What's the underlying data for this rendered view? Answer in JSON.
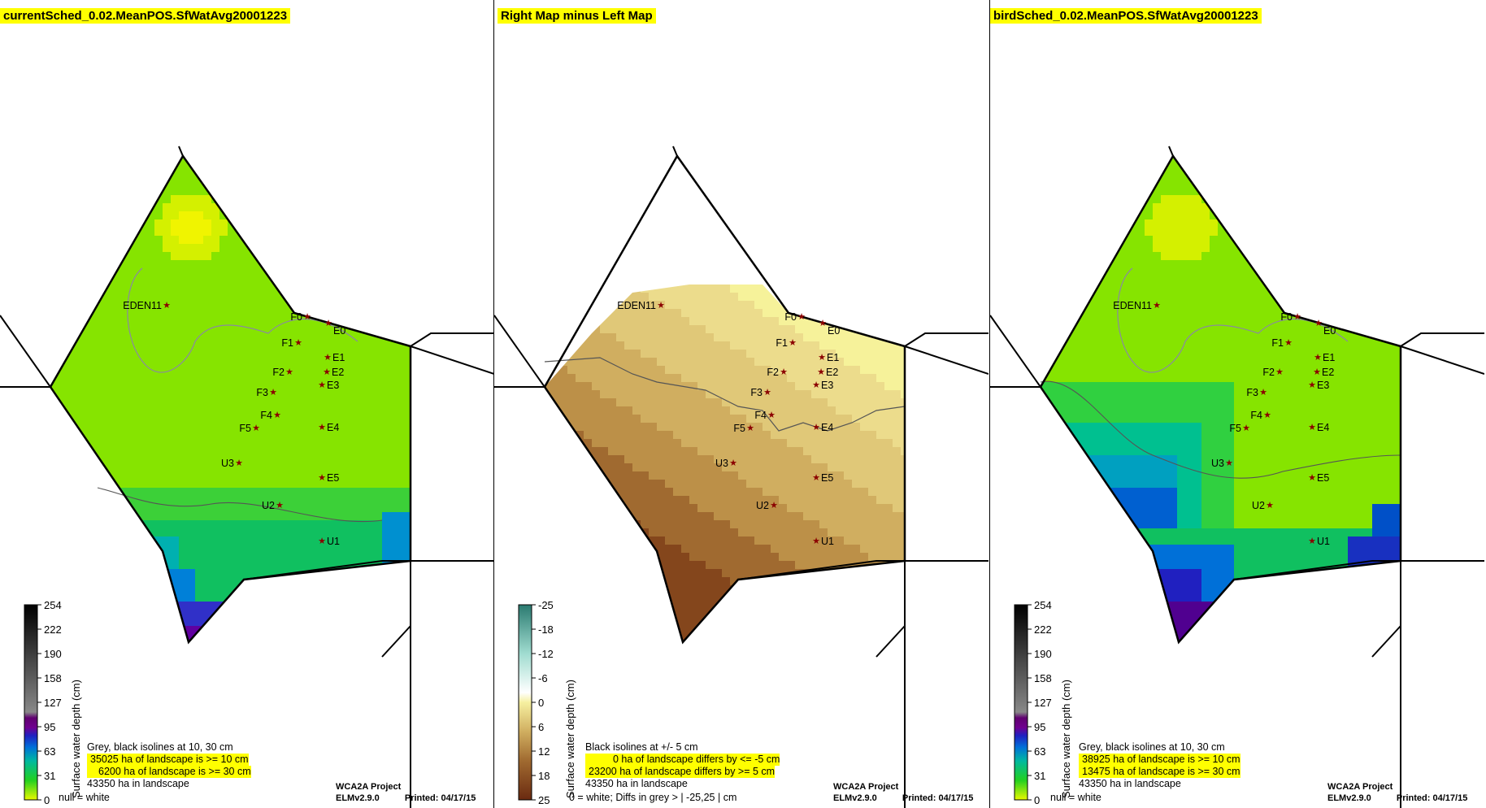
{
  "panels": [
    {
      "title": "currentSched_0.02.MeanPOS.SfWatAvg20001223",
      "variant": "water",
      "legend": {
        "ticks": [
          "254",
          "222",
          "190",
          "158",
          "127",
          "95",
          "63",
          "31",
          "0"
        ],
        "axis_label": "Surface water depth (cm)",
        "null_note": "null = white"
      },
      "info": {
        "line1": "Grey, black isolines at 10, 30 cm",
        "line2": "35025 ha of landscape is >= 10 cm",
        "line3": "6200 ha of landscape is >= 30 cm",
        "line4": "43350 ha in landscape"
      },
      "footer": {
        "project": "WCA2A Project",
        "version": "ELMv2.9.0",
        "printed": "Printed: 04/17/15"
      }
    },
    {
      "title": "Right Map minus Left Map",
      "variant": "diff",
      "legend": {
        "ticks": [
          "-25",
          "-18",
          "-12",
          "-6",
          "0",
          "6",
          "12",
          "18",
          "25"
        ],
        "axis_label": "Surface water depth (cm)",
        "null_note": "0 = white; Diffs in grey > | -25,25 | cm"
      },
      "info": {
        "line1": "Black isolines at +/- 5 cm",
        "line2": "0 ha of landscape differs by <= -5 cm",
        "line3": "23200 ha of landscape differs by >= 5 cm",
        "line4": "43350 ha in landscape"
      },
      "footer": {
        "project": "WCA2A Project",
        "version": "ELMv2.9.0",
        "printed": "Printed: 04/17/15"
      }
    },
    {
      "title": "birdSched_0.02.MeanPOS.SfWatAvg20001223",
      "variant": "water",
      "legend": {
        "ticks": [
          "254",
          "222",
          "190",
          "158",
          "127",
          "95",
          "63",
          "31",
          "0"
        ],
        "axis_label": "Surface water depth (cm)",
        "null_note": "null = white"
      },
      "info": {
        "line1": "Grey, black isolines at 10, 30 cm",
        "line2": "38925 ha of landscape is >= 10 cm",
        "line3": "13475 ha of landscape is >= 30 cm",
        "line4": "43350 ha in landscape"
      },
      "footer": {
        "project": "WCA2A Project",
        "version": "ELMv2.9.0",
        "printed": "Printed: 04/17/15"
      }
    }
  ],
  "stations": [
    "EDEN11",
    "F0",
    "E0",
    "F1",
    "E1",
    "F2",
    "E2",
    "E3",
    "F3",
    "F4",
    "F5",
    "E4",
    "U3",
    "E5",
    "U2",
    "U1"
  ],
  "colors": {
    "highlight": "#ffff00",
    "water_scale": [
      "#e8f800",
      "#7ce000",
      "#22d020",
      "#00b8a0",
      "#0070d8",
      "#2020c0",
      "#700090",
      "#404040",
      "#000000"
    ],
    "diff_scale": [
      "#ffffff",
      "#f6f0a0",
      "#e8d080",
      "#d2b060",
      "#b88840",
      "#8a5020",
      "#6a2a10"
    ]
  }
}
